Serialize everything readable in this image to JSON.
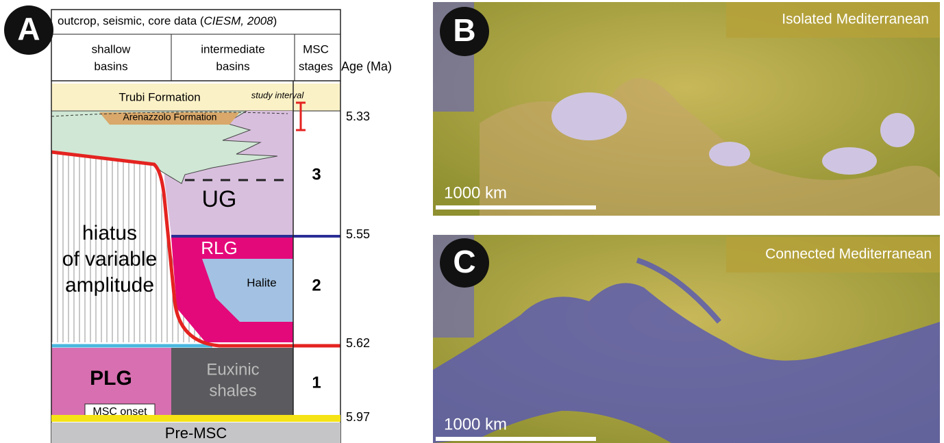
{
  "panel_a": {
    "label": "A",
    "header": {
      "source_prefix": "outcrop, seismic, core data (",
      "source_citation": "CIESM, 2008",
      "source_suffix": ")",
      "columns": [
        [
          "shallow",
          "basins"
        ],
        [
          "intermediate",
          "basins"
        ],
        [
          "MSC",
          "stages"
        ]
      ],
      "age_axis": "Age (Ma)"
    },
    "units": {
      "trubi": "Trubi Formation",
      "study_interval": "study interval",
      "arenazzolo": "Arenazzolo Formation",
      "ug": "UG",
      "rlg": "RLG",
      "halite": "Halite",
      "hiatus": [
        "hiatus",
        "of variable",
        "amplitude"
      ],
      "plg": "PLG",
      "euxinic": [
        "Euxinic",
        "shales"
      ],
      "msc_onset": "MSC onset",
      "pre_msc": "Pre-MSC"
    },
    "stages": [
      3,
      2,
      1
    ],
    "ages": [
      5.33,
      5.55,
      5.62,
      5.97
    ]
  },
  "panel_b": {
    "label": "B",
    "title": "Isolated Mediterranean",
    "scale": "1000 km"
  },
  "panel_c": {
    "label": "C",
    "title": "Connected Mediterranean",
    "scale": "1000 km"
  }
}
